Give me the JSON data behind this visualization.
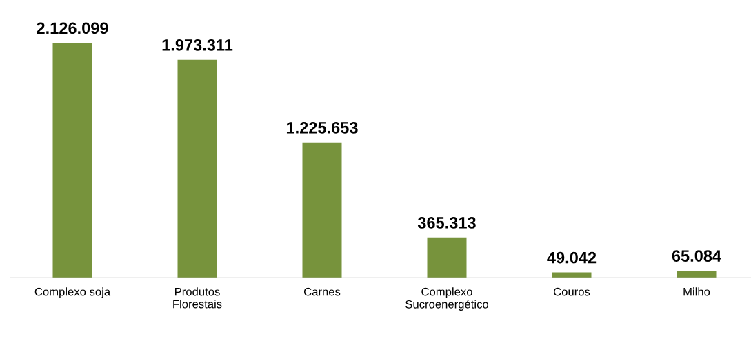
{
  "chart_data": {
    "type": "bar",
    "categories": [
      "Complexo soja",
      "Produtos\nFlorestais",
      "Carnes",
      "Complexo\nSucroenergético",
      "Couros",
      "Milho"
    ],
    "values": [
      2126099,
      1973311,
      1225653,
      365313,
      49042,
      65084
    ],
    "value_labels": [
      "2.126.099",
      "1.973.311",
      "1.225.653",
      "365.313",
      "49.042",
      "65.084"
    ],
    "color": "#77933c",
    "tick_labels": "x"
  }
}
